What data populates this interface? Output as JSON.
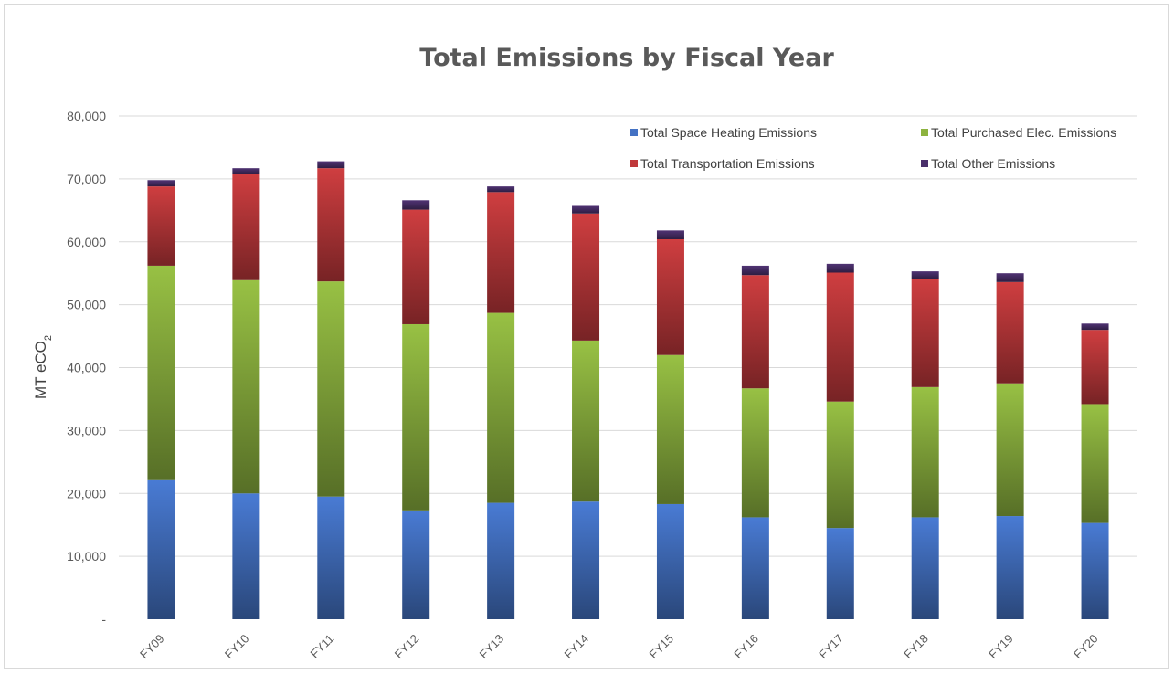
{
  "chart_data": {
    "type": "bar",
    "stacked": true,
    "title": "Total Emissions by Fiscal Year",
    "ylabel": "MT eCO",
    "ylabel_subscript": "2",
    "xlabel": "",
    "ylim": [
      0,
      80000
    ],
    "yticks": [
      {
        "value": 0,
        "label": "-"
      },
      {
        "value": 10000,
        "label": "10,000"
      },
      {
        "value": 20000,
        "label": "20,000"
      },
      {
        "value": 30000,
        "label": "30,000"
      },
      {
        "value": 40000,
        "label": "40,000"
      },
      {
        "value": 50000,
        "label": "50,000"
      },
      {
        "value": 60000,
        "label": "60,000"
      },
      {
        "value": 70000,
        "label": "70,000"
      },
      {
        "value": 80000,
        "label": "80,000"
      }
    ],
    "grid": true,
    "legend_position": "top-right",
    "categories": [
      "FY09",
      "FY10",
      "FY11",
      "FY12",
      "FY13",
      "FY14",
      "FY15",
      "FY16",
      "FY17",
      "FY18",
      "FY19",
      "FY20"
    ],
    "series": [
      {
        "name": "Total Space Heating Emissions",
        "color": "#4472c4",
        "values": [
          22100,
          20000,
          19500,
          17300,
          18500,
          18700,
          18300,
          16200,
          14500,
          16200,
          16400,
          15300
        ]
      },
      {
        "name": "Total Purchased Elec. Emissions",
        "color": "#8db33f",
        "values": [
          34100,
          33900,
          34200,
          29600,
          30200,
          25600,
          23700,
          20500,
          20100,
          20700,
          21100,
          18900
        ]
      },
      {
        "name": "Total Transportation Emissions",
        "color": "#c0393b",
        "values": [
          12600,
          16900,
          18000,
          18200,
          19200,
          20200,
          18400,
          18000,
          20500,
          17200,
          16100,
          11800
        ]
      },
      {
        "name": "Total Other Emissions",
        "color": "#4a2f6b",
        "values": [
          1000,
          900,
          1100,
          1500,
          900,
          1200,
          1400,
          1500,
          1400,
          1200,
          1400,
          1000
        ]
      }
    ]
  }
}
